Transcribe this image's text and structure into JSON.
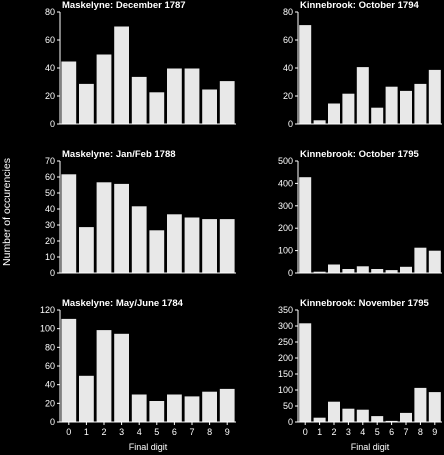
{
  "figure": {
    "ylabel": "Number of occurencies"
  },
  "chart_data": [
    {
      "type": "bar",
      "title": "Maskelyne: December 1787",
      "categories": [
        "0",
        "1",
        "2",
        "3",
        "4",
        "5",
        "6",
        "7",
        "8",
        "9"
      ],
      "values": [
        45,
        29,
        50,
        70,
        34,
        23,
        40,
        40,
        25,
        31
      ],
      "ylim": [
        0,
        80
      ],
      "yticks": [
        0,
        20,
        40,
        60,
        80
      ],
      "xlabel": "",
      "show_xticks": false
    },
    {
      "type": "bar",
      "title": "Kinnebrook: October 1794",
      "categories": [
        "0",
        "1",
        "2",
        "3",
        "4",
        "5",
        "6",
        "7",
        "8",
        "9"
      ],
      "values": [
        71,
        3,
        15,
        22,
        41,
        12,
        27,
        24,
        29,
        39
      ],
      "ylim": [
        0,
        80
      ],
      "yticks": [
        0,
        20,
        40,
        60,
        80
      ],
      "xlabel": "",
      "show_xticks": false
    },
    {
      "type": "bar",
      "title": "Maskelyne: Jan/Feb 1788",
      "categories": [
        "0",
        "1",
        "2",
        "3",
        "4",
        "5",
        "6",
        "7",
        "8",
        "9"
      ],
      "values": [
        62,
        29,
        57,
        56,
        42,
        27,
        37,
        35,
        34,
        34
      ],
      "ylim": [
        0,
        70
      ],
      "yticks": [
        0,
        10,
        20,
        30,
        40,
        50,
        60,
        70
      ],
      "xlabel": "",
      "show_xticks": false
    },
    {
      "type": "bar",
      "title": "Kinnebrook: October 1795",
      "categories": [
        "0",
        "1",
        "2",
        "3",
        "4",
        "5",
        "6",
        "7",
        "8",
        "9"
      ],
      "values": [
        430,
        8,
        40,
        20,
        32,
        20,
        15,
        30,
        115,
        102
      ],
      "ylim": [
        0,
        500
      ],
      "yticks": [
        0,
        100,
        200,
        300,
        400,
        500
      ],
      "xlabel": "",
      "show_xticks": false
    },
    {
      "type": "bar",
      "title": "Maskelyne: May/June 1784",
      "categories": [
        "0",
        "1",
        "2",
        "3",
        "4",
        "5",
        "6",
        "7",
        "8",
        "9"
      ],
      "values": [
        111,
        50,
        99,
        95,
        30,
        23,
        30,
        28,
        33,
        36
      ],
      "ylim": [
        0,
        120
      ],
      "yticks": [
        0,
        20,
        40,
        60,
        80,
        100,
        120
      ],
      "xlabel": "Final digit",
      "show_xticks": true
    },
    {
      "type": "bar",
      "title": "Kinnebrook: November 1795",
      "categories": [
        "0",
        "1",
        "2",
        "3",
        "4",
        "5",
        "6",
        "7",
        "8",
        "9"
      ],
      "values": [
        310,
        15,
        65,
        43,
        40,
        20,
        5,
        30,
        108,
        95
      ],
      "ylim": [
        0,
        350
      ],
      "yticks": [
        0,
        50,
        100,
        150,
        200,
        250,
        300,
        350
      ],
      "xlabel": "Final digit",
      "show_xticks": true
    }
  ]
}
